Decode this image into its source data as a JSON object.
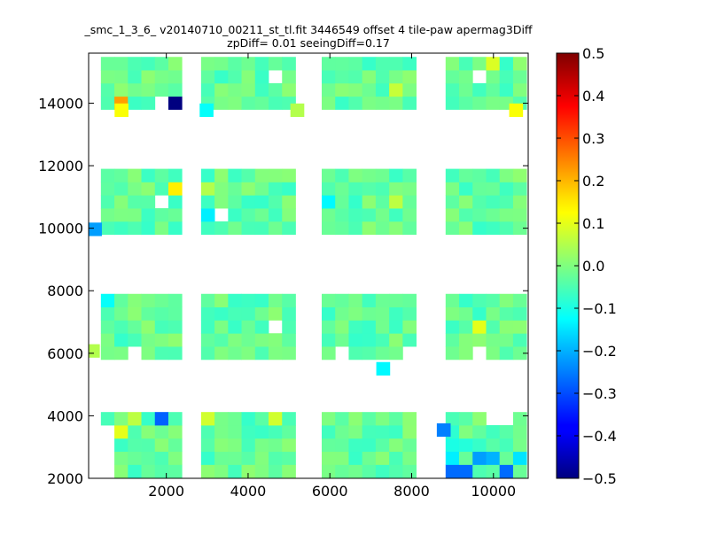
{
  "chart_data": {
    "type": "heatmap",
    "title_line1": "_smc_1_3_6_ v20140710_00211_st_tl.fit 3446549 offset 4 tile-paw apermag3Diff",
    "title_line2": "zpDiff= 0.01 seeingDiff=0.17",
    "xlabel": "",
    "ylabel": "",
    "xlim": [
      100,
      10850
    ],
    "ylim": [
      2000,
      15600
    ],
    "x_ticks": [
      2000,
      4000,
      6000,
      8000,
      10000
    ],
    "y_ticks": [
      2000,
      4000,
      6000,
      8000,
      10000,
      12000,
      14000
    ],
    "colorbar": {
      "vmin": -0.5,
      "vmax": 0.5,
      "colormap": "jet",
      "ticks": [
        0.5,
        0.4,
        0.3,
        0.2,
        0.1,
        0.0,
        -0.1,
        -0.2,
        -0.3,
        -0.4,
        -0.5
      ],
      "tick_labels": [
        "0.5",
        "0.4",
        "0.3",
        "0.2",
        "0.1",
        "0.0",
        "−0.1",
        "−0.2",
        "−0.3",
        "−0.4",
        "−0.5"
      ]
    },
    "grid": false,
    "cell_width": 330,
    "cell_height": 420,
    "column_groups": [
      {
        "x_start": 400,
        "cols": 6
      },
      {
        "x_start": 2850,
        "cols": 7
      },
      {
        "x_start": 5800,
        "cols": 7
      },
      {
        "x_start": 8830,
        "cols": 6
      }
    ],
    "row_groups": [
      {
        "y_start": 2020,
        "rows": 5
      },
      {
        "y_start": 5800,
        "rows": 5
      },
      {
        "y_start": 9800,
        "rows": 5
      },
      {
        "y_start": 13800,
        "rows": 4
      }
    ],
    "base_value": -0.03,
    "highlights": [
      {
        "x": 1920,
        "y": 3970,
        "value": -0.28
      },
      {
        "x": 710,
        "y": 7630,
        "value": -0.12
      },
      {
        "x": 250,
        "y": 9970,
        "value": -0.22
      },
      {
        "x": 2080,
        "y": 14100,
        "value": -0.5
      },
      {
        "x": 900,
        "y": 14100,
        "value": 0.22
      },
      {
        "x": 900,
        "y": 13780,
        "value": 0.12
      },
      {
        "x": 2150,
        "y": 11150,
        "value": 0.14
      },
      {
        "x": 4720,
        "y": 3970,
        "value": 0.08
      },
      {
        "x": 8780,
        "y": 3550,
        "value": -0.25
      },
      {
        "x": 9050,
        "y": 2150,
        "value": -0.27
      },
      {
        "x": 9380,
        "y": 2150,
        "value": -0.27
      },
      {
        "x": 10380,
        "y": 2150,
        "value": -0.27
      },
      {
        "x": 9700,
        "y": 2520,
        "value": -0.22
      },
      {
        "x": 10050,
        "y": 2520,
        "value": -0.2
      },
      {
        "x": 9050,
        "y": 2520,
        "value": -0.14
      },
      {
        "x": 10700,
        "y": 2520,
        "value": -0.15
      },
      {
        "x": 9050,
        "y": 2950,
        "value": -0.1
      },
      {
        "x": 9380,
        "y": 2950,
        "value": -0.09
      },
      {
        "x": 9050,
        "y": 3350,
        "value": -0.08
      },
      {
        "x": 2980,
        "y": 13780,
        "value": -0.12
      },
      {
        "x": 2980,
        "y": 10250,
        "value": -0.14
      },
      {
        "x": 5950,
        "y": 10650,
        "value": -0.13
      },
      {
        "x": 7300,
        "y": 5510,
        "value": -0.13
      },
      {
        "x": 9700,
        "y": 6900,
        "value": 0.1
      },
      {
        "x": 10050,
        "y": 15300,
        "value": 0.09
      },
      {
        "x": 10550,
        "y": 13780,
        "value": 0.12
      },
      {
        "x": 7750,
        "y": 14500,
        "value": 0.07
      },
      {
        "x": 7750,
        "y": 10650,
        "value": 0.06
      },
      {
        "x": 5200,
        "y": 13780,
        "value": 0.05
      },
      {
        "x": 1250,
        "y": 3970,
        "value": 0.06
      },
      {
        "x": 900,
        "y": 3550,
        "value": 0.1
      },
      {
        "x": 2980,
        "y": 3970,
        "value": 0.08
      },
      {
        "x": 2980,
        "y": 11150,
        "value": 0.05
      },
      {
        "x": 200,
        "y": 6080,
        "value": 0.05
      }
    ],
    "empty_cells": [
      {
        "x": 600,
        "y": 3550
      },
      {
        "x": 600,
        "y": 3150
      },
      {
        "x": 600,
        "y": 2650
      },
      {
        "x": 600,
        "y": 2250
      },
      {
        "x": 1250,
        "y": 6080
      },
      {
        "x": 1900,
        "y": 13800
      },
      {
        "x": 3500,
        "y": 10250
      },
      {
        "x": 4700,
        "y": 6900
      },
      {
        "x": 4700,
        "y": 14900
      },
      {
        "x": 6250,
        "y": 6080
      },
      {
        "x": 7950,
        "y": 6080
      },
      {
        "x": 9700,
        "y": 6080
      },
      {
        "x": 10050,
        "y": 3970
      },
      {
        "x": 10380,
        "y": 3970
      },
      {
        "x": 9700,
        "y": 14900
      },
      {
        "x": 1900,
        "y": 10650
      }
    ]
  }
}
